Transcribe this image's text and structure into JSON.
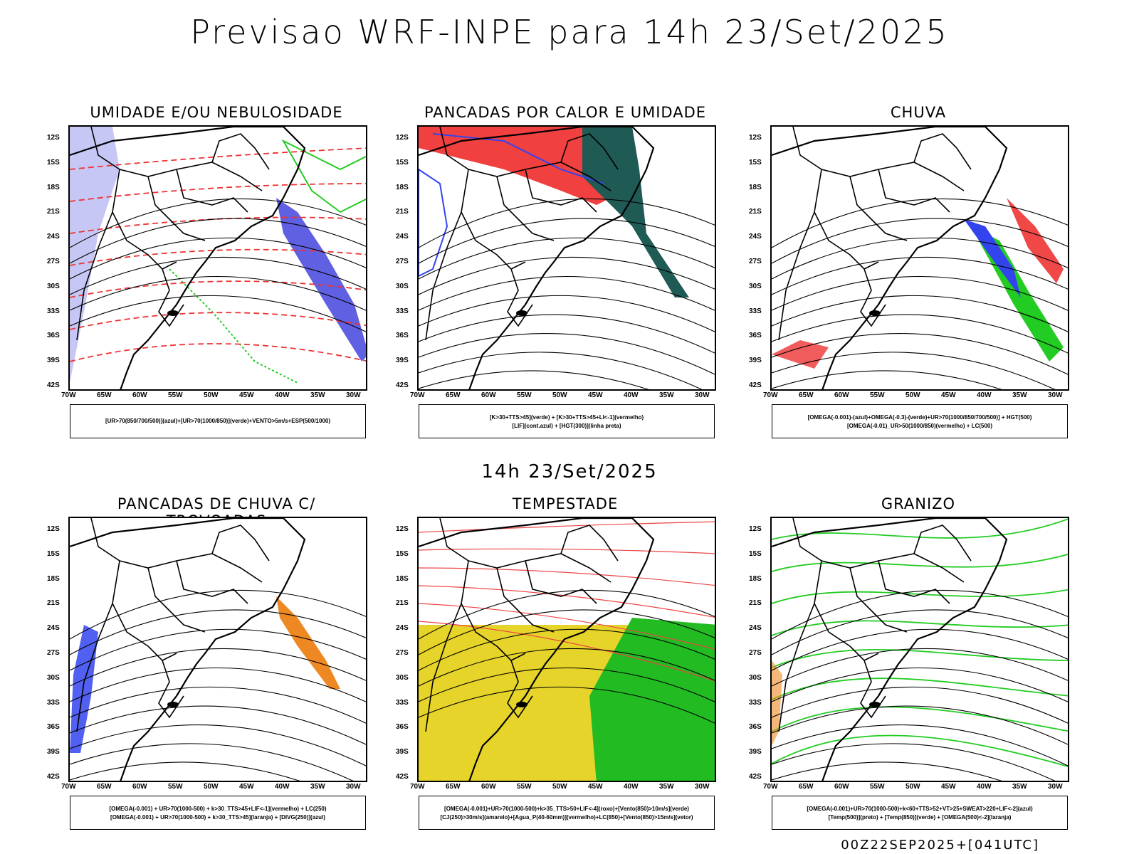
{
  "header": {
    "title": "Previsao WRF-INPE  para 14h 23/Set/2025",
    "mid_label": "14h 23/Set/2025",
    "footer": "00Z22SEP2025+[041UTC]"
  },
  "axes": {
    "lat_labels": [
      "12S",
      "15S",
      "18S",
      "21S",
      "24S",
      "27S",
      "30S",
      "33S",
      "36S",
      "39S",
      "42S"
    ],
    "lon_labels": [
      "70W",
      "65W",
      "60W",
      "55W",
      "50W",
      "45W",
      "40W",
      "35W",
      "30W"
    ]
  },
  "panels": [
    {
      "title": "UMIDADE E/OU NEBULOSIDADE",
      "legend_lines": [
        "[UR>70(850/700/500)](azul)+[UR>70(1000/850)](verde)+VENTO>5m/s+ESP(500/1000)"
      ],
      "colors": [
        "#9999ee",
        "#22cc22",
        "#ee3333"
      ]
    },
    {
      "title": "PANCADAS POR CALOR E UMIDADE",
      "legend_lines": [
        "[K>30+TTS>45](verde) + [K>30+TTS>45+LI<-1](vermelho)",
        "[LIF](cont.azul) + [HGT(300)](linha preta)"
      ],
      "colors": [
        "#f04040",
        "#1f5a55",
        "#3344ee"
      ]
    },
    {
      "title": "CHUVA",
      "legend_lines": [
        "[OMEGA(-0.001)-(azul)+OMEGA(-0.3)-(verde)+UR>70(1000/850/700/500)] + HGT(500)",
        "[OMEGA(-0.01)_UR>50(1000/850)(vermelho) + LC(500)"
      ],
      "colors": [
        "#ee3333",
        "#3344ee",
        "#22cc22"
      ]
    },
    {
      "title": "PANCADAS DE CHUVA C/ TROVOADAS",
      "legend_lines": [
        "[OMEGA(-0.001) + UR>70(1000-500) + k>30_TTS>45+LIF<-1](vermelho) + LC(250)",
        "[OMEGA(-0.001) + UR>70(1000-500) + k>30_TTS>45](laranja) + [DIVG(250)](azul)"
      ],
      "colors": [
        "#ee8822",
        "#3344ee",
        "#ee3333"
      ]
    },
    {
      "title": "TEMPESTADE",
      "legend_lines": [
        "[OMEGA(-0.001)+UR>70(1000-500)+k>35_TTS>50+LIF<-4](roxo)+[Vento(850)>10m/s](verde)",
        "[CJ(250)>30m/s](amarelo)+[Agua_P(40-60mm)](vermelho)+LC(850)+[Vento(850)>15m/s](vetor)"
      ],
      "colors": [
        "#e6d42a",
        "#22bb22",
        "#ee4444"
      ]
    },
    {
      "title": "GRANIZO",
      "legend_lines": [
        "[OMEGA(-0.001)+UR>70(1000-500)+k<60+TTS>52+VT>25+SWEAT>220+LIF<-2](azul)",
        "[Temp(500)](preto) + [Temp(850)](verde) + [OMEGA(500)<-2](laranja)"
      ],
      "colors": [
        "#22cc22",
        "#ee8822",
        "#000000"
      ]
    }
  ]
}
